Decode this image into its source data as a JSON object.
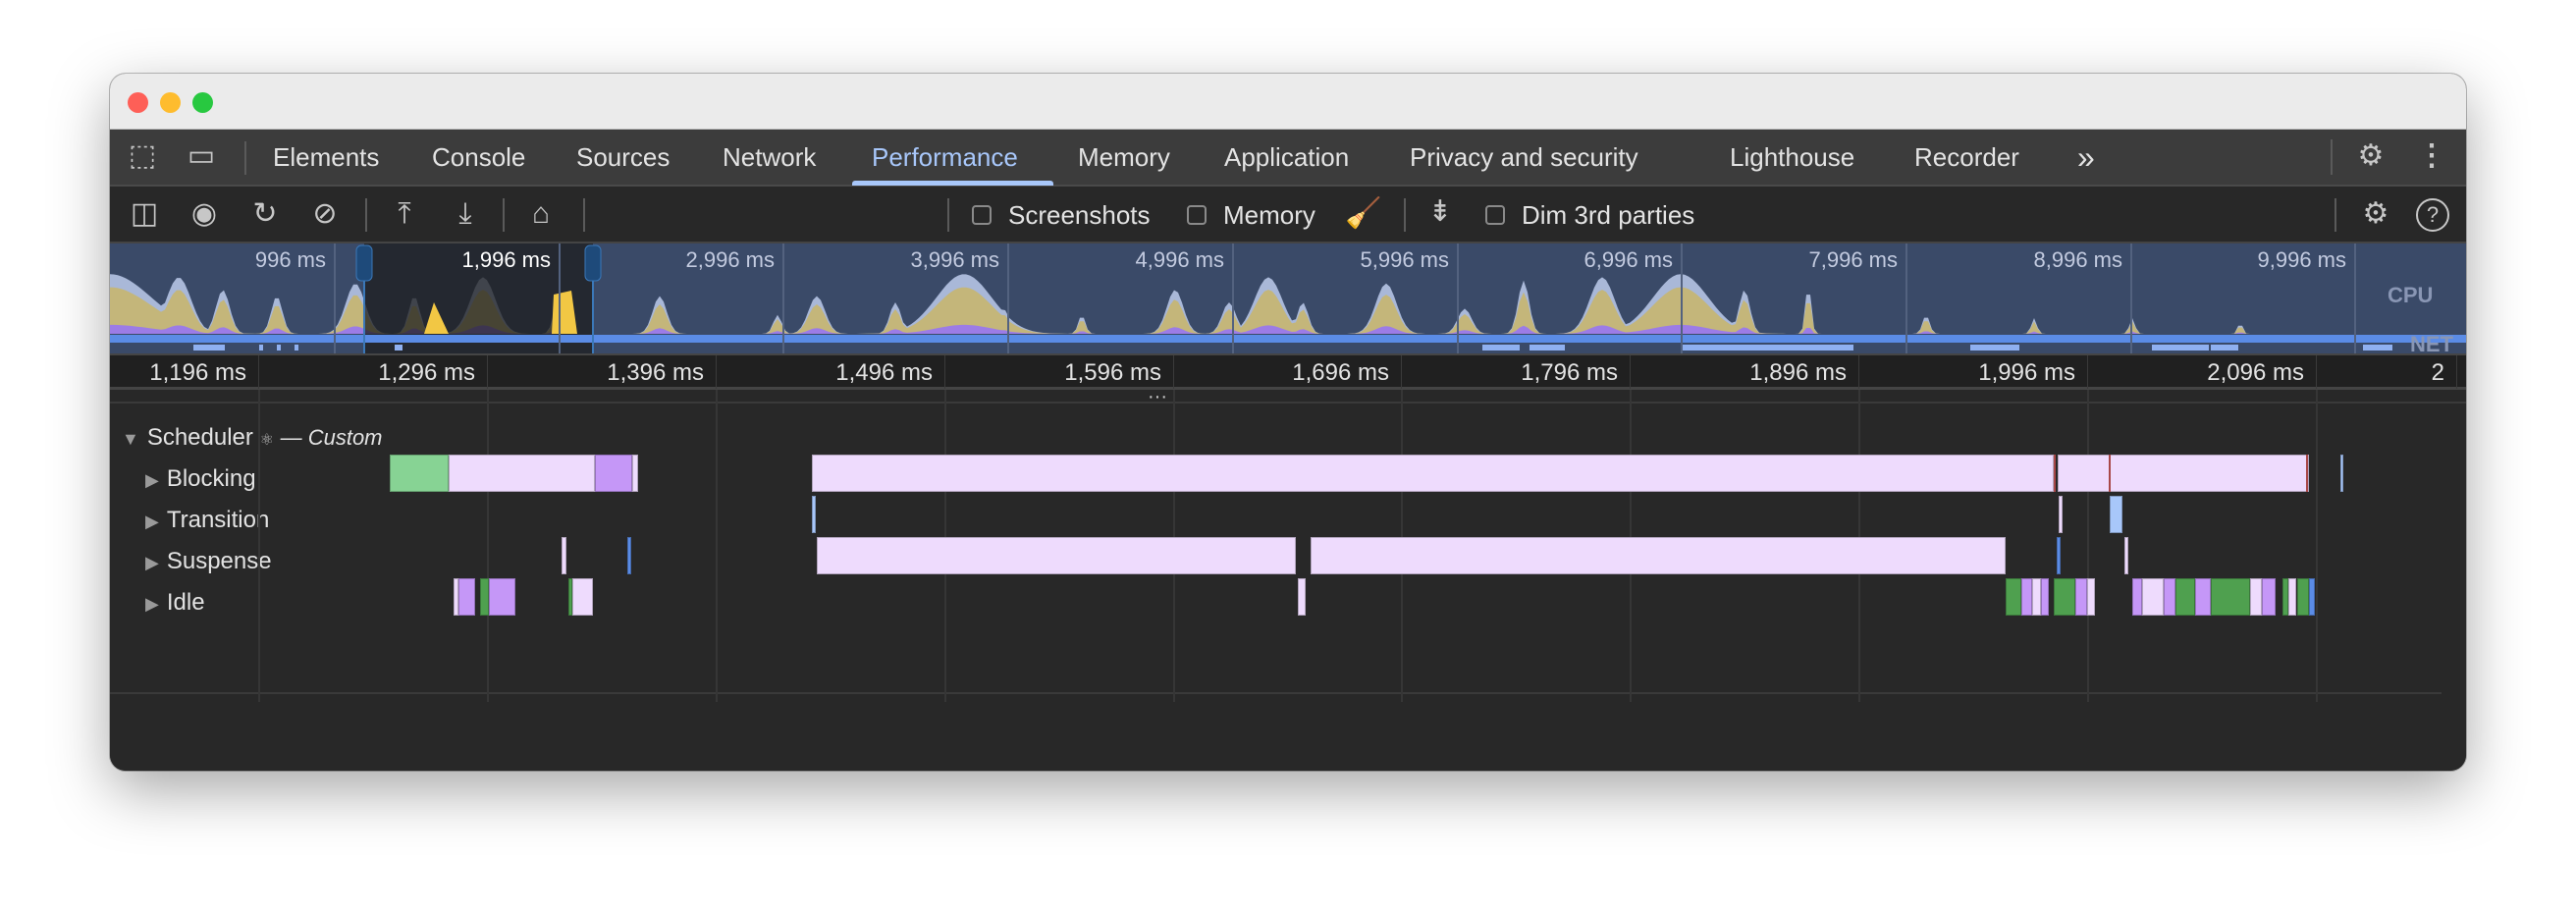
{
  "tabs": {
    "items": [
      {
        "label": "Elements"
      },
      {
        "label": "Console"
      },
      {
        "label": "Sources"
      },
      {
        "label": "Network"
      },
      {
        "label": "Performance",
        "active": true
      },
      {
        "label": "Memory"
      },
      {
        "label": "Application"
      },
      {
        "label": "Privacy and security"
      },
      {
        "label": "Lighthouse"
      },
      {
        "label": "Recorder"
      }
    ],
    "more": "»"
  },
  "toolbar": {
    "screenshots_label": "Screenshots",
    "screenshots_checked": false,
    "memory_label": "Memory",
    "memory_checked": false,
    "dim_label": "Dim 3rd parties",
    "dim_checked": false
  },
  "overview": {
    "times": [
      "996 ms",
      "1,996 ms",
      "2,996 ms",
      "3,996 ms",
      "4,996 ms",
      "5,996 ms",
      "6,996 ms",
      "7,996 ms",
      "8,996 ms",
      "9,996 ms"
    ],
    "cpu_label": "CPU",
    "net_label": "NET"
  },
  "ruler": {
    "times": [
      "1,196 ms",
      "1,296 ms",
      "1,396 ms",
      "1,496 ms",
      "1,596 ms",
      "1,696 ms",
      "1,796 ms",
      "1,896 ms",
      "1,996 ms",
      "2,096 ms",
      "2"
    ]
  },
  "tracks": {
    "group": "Scheduler",
    "group_suffix": "— Custom",
    "rows": [
      "Blocking",
      "Transition",
      "Suspense",
      "Idle"
    ]
  },
  "colors": {
    "accent": "#a8c7fa",
    "lavender": "#eedbfd",
    "purple": "#c597f7",
    "green": "#4fa04f",
    "light_green": "#87d394",
    "blue": "#5b8ce6"
  }
}
